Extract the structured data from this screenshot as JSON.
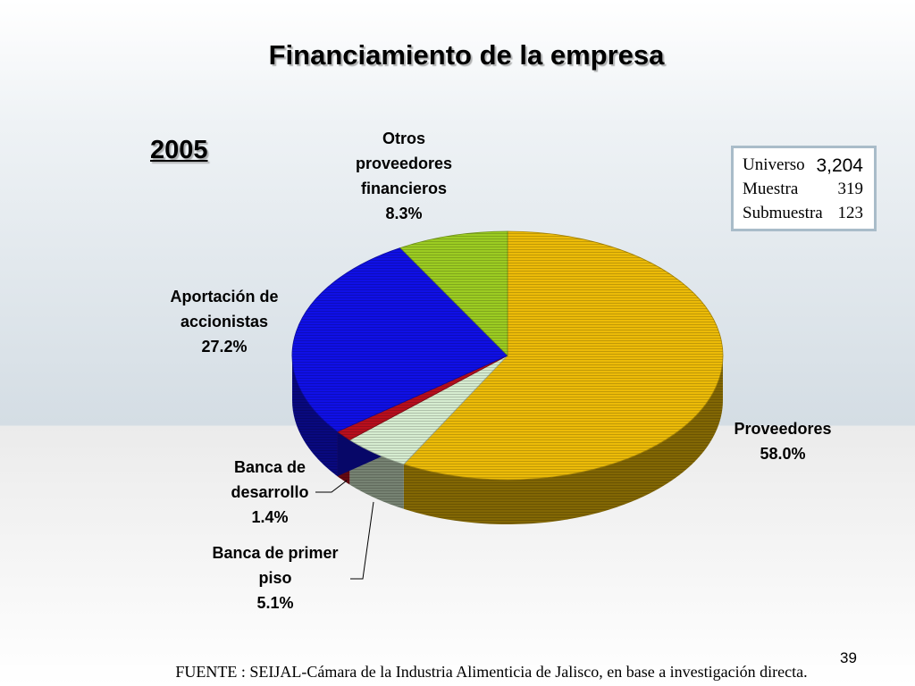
{
  "slide": {
    "title": "Financiamiento de la empresa",
    "year": "2005",
    "source": "FUENTE : SEIJAL-Cámara de la Industria Alimenticia de Jalisco,  en base a investigación directa.",
    "page_number": "39"
  },
  "info_box": {
    "rows": [
      {
        "label": "Universo",
        "value": "3,204"
      },
      {
        "label": "Muestra",
        "value": "319"
      },
      {
        "label": "Submuestra",
        "value": "123"
      }
    ]
  },
  "chart_data": {
    "type": "pie",
    "style": "3d",
    "slices": [
      {
        "label_lines": [
          "Proveedores"
        ],
        "value": 58.0,
        "value_label": "58.0%",
        "color": "#ecbb08"
      },
      {
        "label_lines": [
          "Banca de primer",
          "piso"
        ],
        "value": 5.1,
        "value_label": "5.1%",
        "color": "#d6ecd0"
      },
      {
        "label_lines": [
          "Banca de",
          "desarrollo"
        ],
        "value": 1.4,
        "value_label": "1.4%",
        "color": "#b80f1e"
      },
      {
        "label_lines": [
          "Aportación de",
          "accionistas"
        ],
        "value": 27.2,
        "value_label": "27.2%",
        "color": "#1010e6"
      },
      {
        "label_lines": [
          "Otros",
          "proveedores",
          "financieros"
        ],
        "value": 8.3,
        "value_label": "8.3%",
        "color": "#9ccc22"
      }
    ]
  }
}
